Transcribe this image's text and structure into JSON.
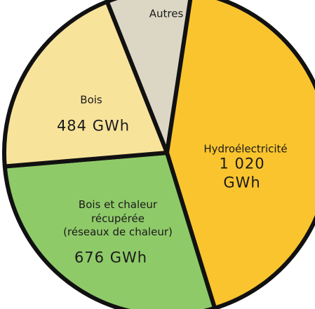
{
  "chart_data": {
    "type": "pie",
    "categories": [
      "Autres",
      "Hydroélectricité",
      "Bois et chaleur\nrécupérée\n(réseaux de chaleur)",
      "Bois"
    ],
    "values": [
      200,
      1020,
      676,
      484
    ],
    "value_labels": [
      null,
      "1 020 GWh",
      "676 GWh",
      "484 GWh"
    ],
    "colors": [
      "#dcd7c5",
      "#f9c42e",
      "#8fca69",
      "#f8e39b"
    ]
  }
}
